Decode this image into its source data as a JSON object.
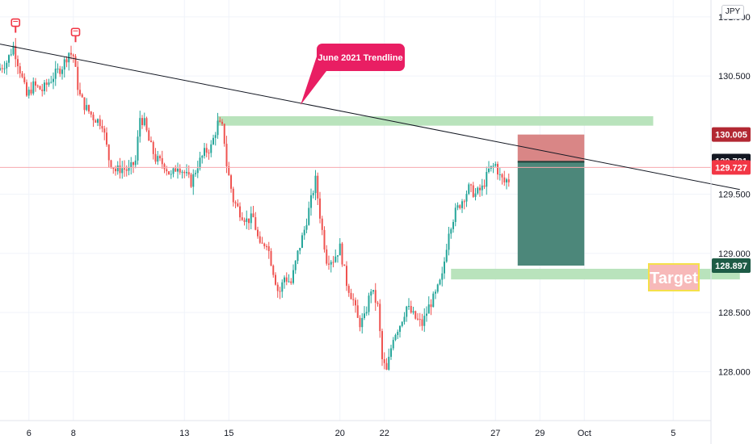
{
  "currency_badge": "JPY",
  "chart_data": {
    "type": "candlestick",
    "title": "",
    "x_axis": {
      "ticks": [
        {
          "label": "6",
          "day": 6
        },
        {
          "label": "8",
          "day": 8
        },
        {
          "label": "13",
          "day": 13
        },
        {
          "label": "15",
          "day": 15
        },
        {
          "label": "20",
          "day": 20
        },
        {
          "label": "22",
          "day": 22
        },
        {
          "label": "27",
          "day": 27
        },
        {
          "label": "29",
          "day": 29
        },
        {
          "label": "Oct",
          "day": 31
        },
        {
          "label": "5",
          "day": 35
        }
      ],
      "range": [
        4.7,
        38
      ]
    },
    "y_axis": {
      "ticks": [
        {
          "label": "131.000",
          "value": 131.0
        },
        {
          "label": "130.500",
          "value": 130.5
        },
        {
          "label": "129.500",
          "value": 129.5
        },
        {
          "label": "129.000",
          "value": 129.0
        },
        {
          "label": "128.500",
          "value": 128.5
        },
        {
          "label": "128.000",
          "value": 128.0
        }
      ],
      "range": [
        127.62,
        131.15
      ]
    },
    "price_labels": [
      {
        "label": "130.005",
        "value": 130.005,
        "color": "#b22833"
      },
      {
        "label": "129.781",
        "value": 129.781,
        "color": "#131722"
      },
      {
        "label": "129.727",
        "value": 129.727,
        "color": "#f23645"
      },
      {
        "label": "128.897",
        "value": 128.897,
        "color": "#1e5b46"
      }
    ],
    "current_price": 129.727,
    "candles_start_day": 4.7,
    "candles_step_day": 0.1,
    "path": [
      [
        4.7,
        130.55
      ],
      [
        5.1,
        130.62
      ],
      [
        5.4,
        130.75
      ],
      [
        5.7,
        130.55
      ],
      [
        6.0,
        130.33
      ],
      [
        6.3,
        130.42
      ],
      [
        6.7,
        130.38
      ],
      [
        7.0,
        130.45
      ],
      [
        7.3,
        130.52
      ],
      [
        7.6,
        130.58
      ],
      [
        7.9,
        130.7
      ],
      [
        8.1,
        130.67
      ],
      [
        8.35,
        130.35
      ],
      [
        8.6,
        130.25
      ],
      [
        9.0,
        130.15
      ],
      [
        9.4,
        130.1
      ],
      [
        9.7,
        129.8
      ],
      [
        10.0,
        129.7
      ],
      [
        10.3,
        129.72
      ],
      [
        10.6,
        129.7
      ],
      [
        10.9,
        129.78
      ],
      [
        11.1,
        130.15
      ],
      [
        11.3,
        130.1
      ],
      [
        11.5,
        129.95
      ],
      [
        11.8,
        129.8
      ],
      [
        12.2,
        129.75
      ],
      [
        12.5,
        129.65
      ],
      [
        12.8,
        129.75
      ],
      [
        13.1,
        129.68
      ],
      [
        13.4,
        129.6
      ],
      [
        13.7,
        129.75
      ],
      [
        14.0,
        129.85
      ],
      [
        14.3,
        129.9
      ],
      [
        14.6,
        130.1
      ],
      [
        14.85,
        130.05
      ],
      [
        15.0,
        129.75
      ],
      [
        15.3,
        129.45
      ],
      [
        15.6,
        129.35
      ],
      [
        15.9,
        129.28
      ],
      [
        16.2,
        129.3
      ],
      [
        16.5,
        129.05
      ],
      [
        16.8,
        129.1
      ],
      [
        17.1,
        128.85
      ],
      [
        17.35,
        128.65
      ],
      [
        17.6,
        128.8
      ],
      [
        17.9,
        128.75
      ],
      [
        18.2,
        129.0
      ],
      [
        18.5,
        129.2
      ],
      [
        18.8,
        129.45
      ],
      [
        19.0,
        129.62
      ],
      [
        19.25,
        129.25
      ],
      [
        19.5,
        128.95
      ],
      [
        19.8,
        128.95
      ],
      [
        20.1,
        129.05
      ],
      [
        20.4,
        128.75
      ],
      [
        20.7,
        128.6
      ],
      [
        20.95,
        128.4
      ],
      [
        21.2,
        128.45
      ],
      [
        21.5,
        128.7
      ],
      [
        21.8,
        128.55
      ],
      [
        22.0,
        128.1
      ],
      [
        22.2,
        128.0
      ],
      [
        22.5,
        128.3
      ],
      [
        22.8,
        128.4
      ],
      [
        23.1,
        128.55
      ],
      [
        23.5,
        128.45
      ],
      [
        23.8,
        128.4
      ],
      [
        24.1,
        128.55
      ],
      [
        24.4,
        128.65
      ],
      [
        24.7,
        128.8
      ],
      [
        25.0,
        129.2
      ],
      [
        25.3,
        129.35
      ],
      [
        25.6,
        129.45
      ],
      [
        25.9,
        129.55
      ],
      [
        26.2,
        129.5
      ],
      [
        26.5,
        129.55
      ],
      [
        26.8,
        129.7
      ],
      [
        27.1,
        129.75
      ],
      [
        27.3,
        129.65
      ],
      [
        27.5,
        129.6
      ],
      [
        27.6,
        129.62
      ]
    ],
    "trendline": {
      "x": [
        4.7,
        38
      ],
      "y": [
        130.77,
        129.54
      ]
    },
    "annotations": [
      {
        "type": "callout",
        "text": "June 2021 Trendline",
        "color": "#e91e63"
      },
      {
        "type": "label",
        "text": "Target",
        "color": "#f7b9b9",
        "border": "#f5e04a",
        "text_color": "#ffffff"
      }
    ],
    "zones": [
      {
        "name": "resistance",
        "x": [
          14.5,
          34.1
        ],
        "y": [
          130.08,
          130.16
        ],
        "color": "#b9e3bc"
      },
      {
        "name": "support",
        "x": [
          25.0,
          38.0
        ],
        "y": [
          128.78,
          128.87
        ],
        "color": "#b9e3bc"
      }
    ],
    "position": {
      "x": [
        28.0,
        31.0
      ],
      "stop": [
        129.775,
        130.005
      ],
      "target": [
        128.897,
        129.775
      ],
      "stop_color": "#d98686",
      "target_color": "#4c877a"
    },
    "markers": [
      {
        "day": 5.4,
        "value": 130.75
      },
      {
        "day": 8.1,
        "value": 130.67
      }
    ],
    "legend": "none",
    "grid": true
  }
}
